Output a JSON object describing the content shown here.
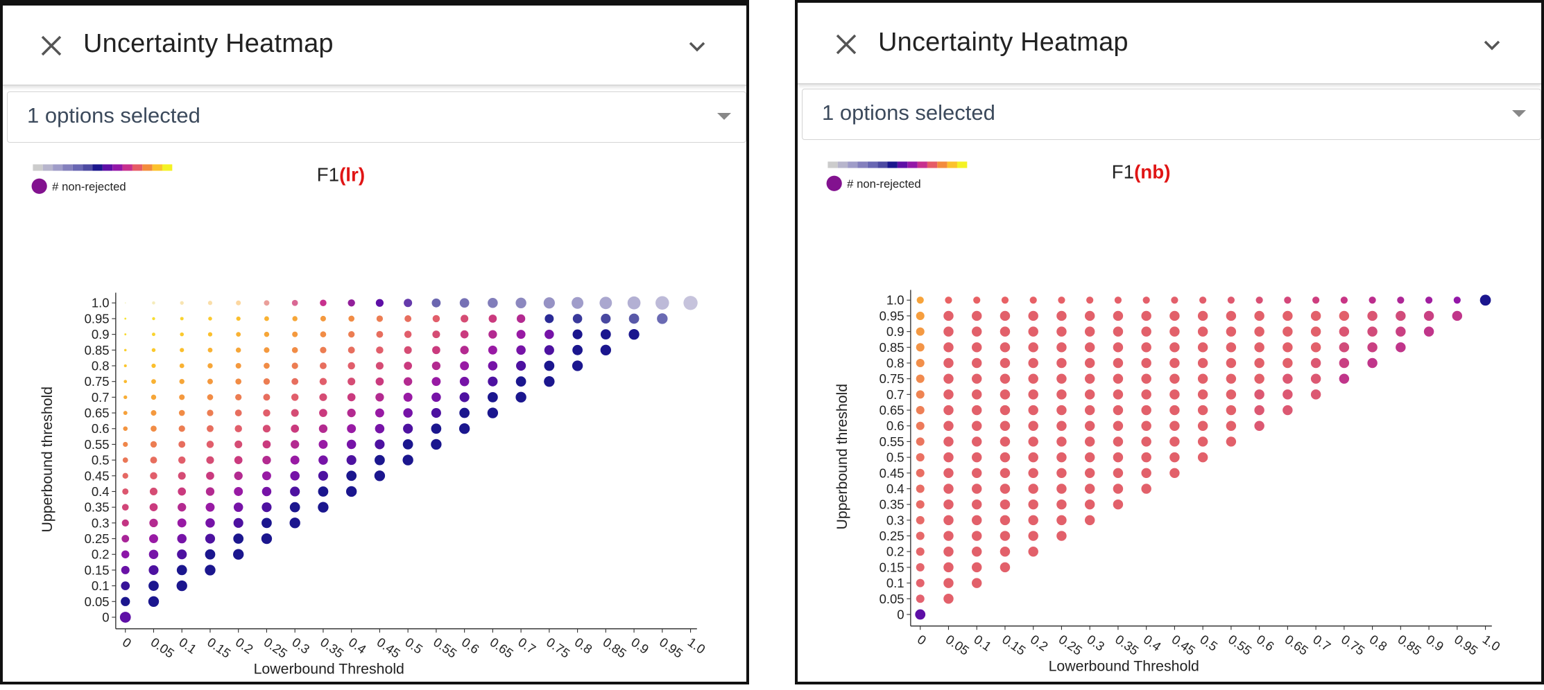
{
  "colors": {
    "accent_red": "#e01515",
    "scale": [
      "#cccccc",
      "#b7b5cc",
      "#9f9cc8",
      "#8480bd",
      "#6967b3",
      "#4d4aa2",
      "#1b168e",
      "#5e0fa6",
      "#9317a8",
      "#c7308e",
      "#e65c66",
      "#f38c3c",
      "#fcc22c",
      "#f4f224"
    ]
  },
  "panels": [
    {
      "key": "lr",
      "header": {
        "title": "Uncertainty Heatmap",
        "close_icon": "close-icon",
        "collapse_icon": "chevron-down-icon"
      },
      "select": {
        "value": "1 options selected",
        "caret_icon": "caret-down-icon"
      },
      "chart": {
        "title_prefix": "F1",
        "title_model": "(lr)",
        "legend_label": "# non-rejected",
        "xlabel": "Lowerbound Threshold",
        "ylabel": "Upperbound threshold"
      }
    },
    {
      "key": "nb",
      "header": {
        "title": "Uncertainty Heatmap",
        "close_icon": "close-icon",
        "collapse_icon": "chevron-down-icon"
      },
      "select": {
        "value": "1 options selected",
        "caret_icon": "caret-down-icon"
      },
      "chart": {
        "title_prefix": "F1",
        "title_model": "(nb)",
        "legend_label": "# non-rejected",
        "xlabel": "Lowerbound Threshold",
        "ylabel": "Upperbound threshold"
      }
    }
  ],
  "chart_data": [
    {
      "type": "heatmap",
      "title": "F1(lr)",
      "xlabel": "Lowerbound Threshold",
      "ylabel": "Upperbound threshold",
      "x_ticks": [
        "0",
        "0.05",
        "0.1",
        "0.15",
        "0.2",
        "0.25",
        "0.3",
        "0.35",
        "0.4",
        "0.45",
        "0.5",
        "0.55",
        "0.6",
        "0.65",
        "0.7",
        "0.75",
        "0.8",
        "0.85",
        "0.9",
        "0.95",
        "1.0"
      ],
      "y_ticks": [
        "0",
        "0.05",
        "0.1",
        "0.15",
        "0.2",
        "0.25",
        "0.3",
        "0.35",
        "0.4",
        "0.45",
        "0.5",
        "0.55",
        "0.6",
        "0.65",
        "0.7",
        "0.75",
        "0.8",
        "0.85",
        "0.9",
        "0.95",
        "1.0"
      ],
      "cell_rule": "upperbound >= lowerbound",
      "color_encoding": "F1",
      "size_encoding": "# non-rejected",
      "legend": "top-left",
      "size_trend": "increases toward the diagonal; smallest at x=0, high y",
      "color_trend": "yellow at low x/high y, orange then red near middle, purple/navy near diagonal, light lavender at top-right"
    },
    {
      "type": "heatmap",
      "title": "F1(nb)",
      "xlabel": "Lowerbound Threshold",
      "ylabel": "Upperbound threshold",
      "x_ticks": [
        "0",
        "0.05",
        "0.1",
        "0.15",
        "0.2",
        "0.25",
        "0.3",
        "0.35",
        "0.4",
        "0.45",
        "0.5",
        "0.55",
        "0.6",
        "0.65",
        "0.7",
        "0.75",
        "0.8",
        "0.85",
        "0.9",
        "0.95",
        "1.0"
      ],
      "y_ticks": [
        "0",
        "0.05",
        "0.1",
        "0.15",
        "0.2",
        "0.25",
        "0.3",
        "0.35",
        "0.4",
        "0.45",
        "0.5",
        "0.55",
        "0.6",
        "0.65",
        "0.7",
        "0.75",
        "0.8",
        "0.85",
        "0.9",
        "0.95",
        "1.0"
      ],
      "cell_rule": "upperbound >= lowerbound",
      "color_encoding": "F1",
      "size_encoding": "# non-rejected",
      "legend": "top-left",
      "size_trend": "mostly uniform, slightly smaller in top row",
      "color_trend": "mostly coral red, orange at x=0, magenta in top-right, purple at (0,0), navy at (1.0,1.0)"
    }
  ]
}
